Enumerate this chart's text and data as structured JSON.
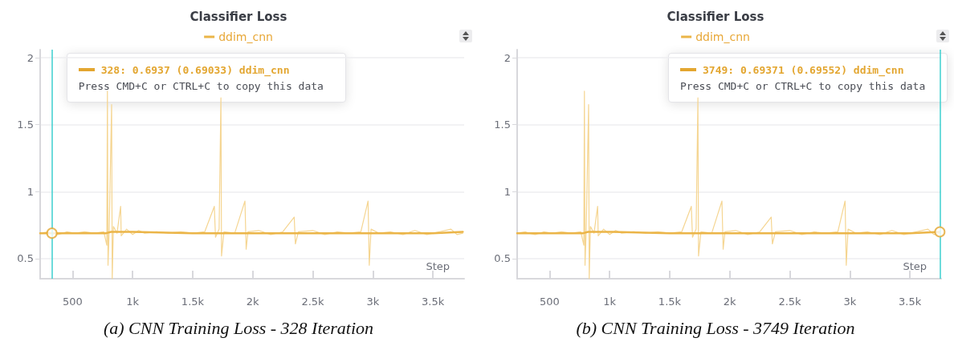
{
  "chart_data": [
    {
      "type": "line",
      "title": "Classifier Loss",
      "xlabel": "Step",
      "legend": "top",
      "grid": "y",
      "marker": "none",
      "line_style": "solid",
      "xlim": [
        230,
        3760
      ],
      "ylim": [
        0.35,
        2.06
      ],
      "xticks": [
        500,
        {
          "value": 1000,
          "label": "1k"
        },
        {
          "value": 1500,
          "label": "1.5k"
        },
        {
          "value": 2000,
          "label": "2k"
        },
        {
          "value": 2500,
          "label": "2.5k"
        },
        {
          "value": 3000,
          "label": "3k"
        },
        {
          "value": 3500,
          "label": "3.5k"
        }
      ],
      "yticks": [
        0.5,
        1,
        1.5,
        2
      ],
      "series": [
        {
          "color": "#f5d591",
          "x": [
            230,
            300,
            328,
            380,
            450,
            520,
            600,
            680,
            760,
            785,
            790,
            795,
            805,
            825,
            830,
            840,
            870,
            900,
            905,
            950,
            1000,
            1050,
            1100,
            1200,
            1300,
            1400,
            1500,
            1600,
            1680,
            1690,
            1720,
            1735,
            1740,
            1760,
            1850,
            1935,
            1945,
            1960,
            2050,
            2150,
            2250,
            2345,
            2355,
            2380,
            2500,
            2600,
            2700,
            2800,
            2900,
            2960,
            2970,
            2985,
            3050,
            3150,
            3250,
            3350,
            3450,
            3550,
            3650,
            3700,
            3749
          ],
          "values": [
            0.69,
            0.7,
            0.69,
            0.68,
            0.7,
            0.69,
            0.7,
            0.69,
            0.7,
            0.6,
            1.75,
            0.45,
            0.72,
            1.65,
            0.35,
            0.74,
            0.69,
            0.89,
            0.67,
            0.72,
            0.68,
            0.71,
            0.69,
            0.7,
            0.69,
            0.7,
            0.69,
            0.7,
            0.89,
            0.66,
            0.72,
            1.7,
            0.52,
            0.7,
            0.69,
            0.93,
            0.57,
            0.7,
            0.71,
            0.68,
            0.7,
            0.81,
            0.61,
            0.7,
            0.71,
            0.68,
            0.7,
            0.69,
            0.7,
            0.93,
            0.45,
            0.72,
            0.69,
            0.7,
            0.68,
            0.71,
            0.68,
            0.7,
            0.72,
            0.68,
            0.69
          ]
        },
        {
          "name": "ddim_cnn",
          "color": "#ebb548",
          "x": [
            230,
            328,
            500,
            780,
            820,
            1000,
            1500,
            2000,
            2500,
            3000,
            3500,
            3749
          ],
          "values": [
            0.69,
            0.69,
            0.69,
            0.69,
            0.7,
            0.7,
            0.69,
            0.69,
            0.69,
            0.69,
            0.69,
            0.7
          ]
        },
        {
          "type": "scatter",
          "marker": "circle",
          "color": "#e3a630",
          "x": [
            328
          ],
          "values": [
            0.69
          ]
        }
      ],
      "ref_lines": [
        {
          "axis": "x",
          "value": 328,
          "color": "#3ccfcf"
        }
      ],
      "annotations": [
        "328: 0.6937 (0.69033) ddim_cnn",
        "Press CMD+C or CTRL+C to copy this data",
        "(a) CNN Training Loss - 328 Iteration"
      ]
    },
    {
      "type": "line",
      "title": "Classifier Loss",
      "xlabel": "Step",
      "legend": "top",
      "grid": "y",
      "marker": "none",
      "line_style": "solid",
      "xlim": [
        230,
        3760
      ],
      "ylim": [
        0.35,
        2.06
      ],
      "xticks": [
        500,
        {
          "value": 1000,
          "label": "1k"
        },
        {
          "value": 1500,
          "label": "1.5k"
        },
        {
          "value": 2000,
          "label": "2k"
        },
        {
          "value": 2500,
          "label": "2.5k"
        },
        {
          "value": 3000,
          "label": "3k"
        },
        {
          "value": 3500,
          "label": "3.5k"
        }
      ],
      "yticks": [
        0.5,
        1,
        1.5,
        2
      ],
      "series": [
        {
          "color": "#f5d591",
          "x": [
            230,
            300,
            328,
            380,
            450,
            520,
            600,
            680,
            760,
            785,
            790,
            795,
            805,
            825,
            830,
            840,
            870,
            900,
            905,
            950,
            1000,
            1050,
            1100,
            1200,
            1300,
            1400,
            1500,
            1600,
            1680,
            1690,
            1720,
            1735,
            1740,
            1760,
            1850,
            1935,
            1945,
            1960,
            2050,
            2150,
            2250,
            2345,
            2355,
            2380,
            2500,
            2600,
            2700,
            2800,
            2900,
            2960,
            2970,
            2985,
            3050,
            3150,
            3250,
            3350,
            3450,
            3550,
            3650,
            3700,
            3749
          ],
          "values": [
            0.69,
            0.7,
            0.69,
            0.68,
            0.7,
            0.69,
            0.7,
            0.69,
            0.7,
            0.6,
            1.75,
            0.45,
            0.72,
            1.65,
            0.35,
            0.74,
            0.69,
            0.89,
            0.67,
            0.72,
            0.68,
            0.71,
            0.69,
            0.7,
            0.69,
            0.7,
            0.69,
            0.7,
            0.89,
            0.66,
            0.72,
            1.7,
            0.52,
            0.7,
            0.69,
            0.93,
            0.57,
            0.7,
            0.71,
            0.68,
            0.7,
            0.81,
            0.61,
            0.7,
            0.71,
            0.68,
            0.7,
            0.69,
            0.7,
            0.93,
            0.45,
            0.72,
            0.69,
            0.7,
            0.68,
            0.71,
            0.68,
            0.7,
            0.72,
            0.68,
            0.69
          ]
        },
        {
          "name": "ddim_cnn",
          "color": "#ebb548",
          "x": [
            230,
            328,
            500,
            780,
            820,
            1000,
            1500,
            2000,
            2500,
            3000,
            3500,
            3749
          ],
          "values": [
            0.69,
            0.69,
            0.69,
            0.69,
            0.7,
            0.7,
            0.69,
            0.69,
            0.69,
            0.69,
            0.69,
            0.7
          ]
        },
        {
          "type": "scatter",
          "marker": "circle",
          "color": "#e3a630",
          "x": [
            3749
          ],
          "values": [
            0.7
          ]
        }
      ],
      "ref_lines": [
        {
          "axis": "x",
          "value": 3749,
          "color": "#3ccfcf"
        }
      ],
      "annotations": [
        "3749: 0.69371 (0.69552) ddim_cnn",
        "Press CMD+C or CTRL+C to copy this data",
        "(b) CNN Training Loss - 3749 Iteration"
      ]
    }
  ]
}
